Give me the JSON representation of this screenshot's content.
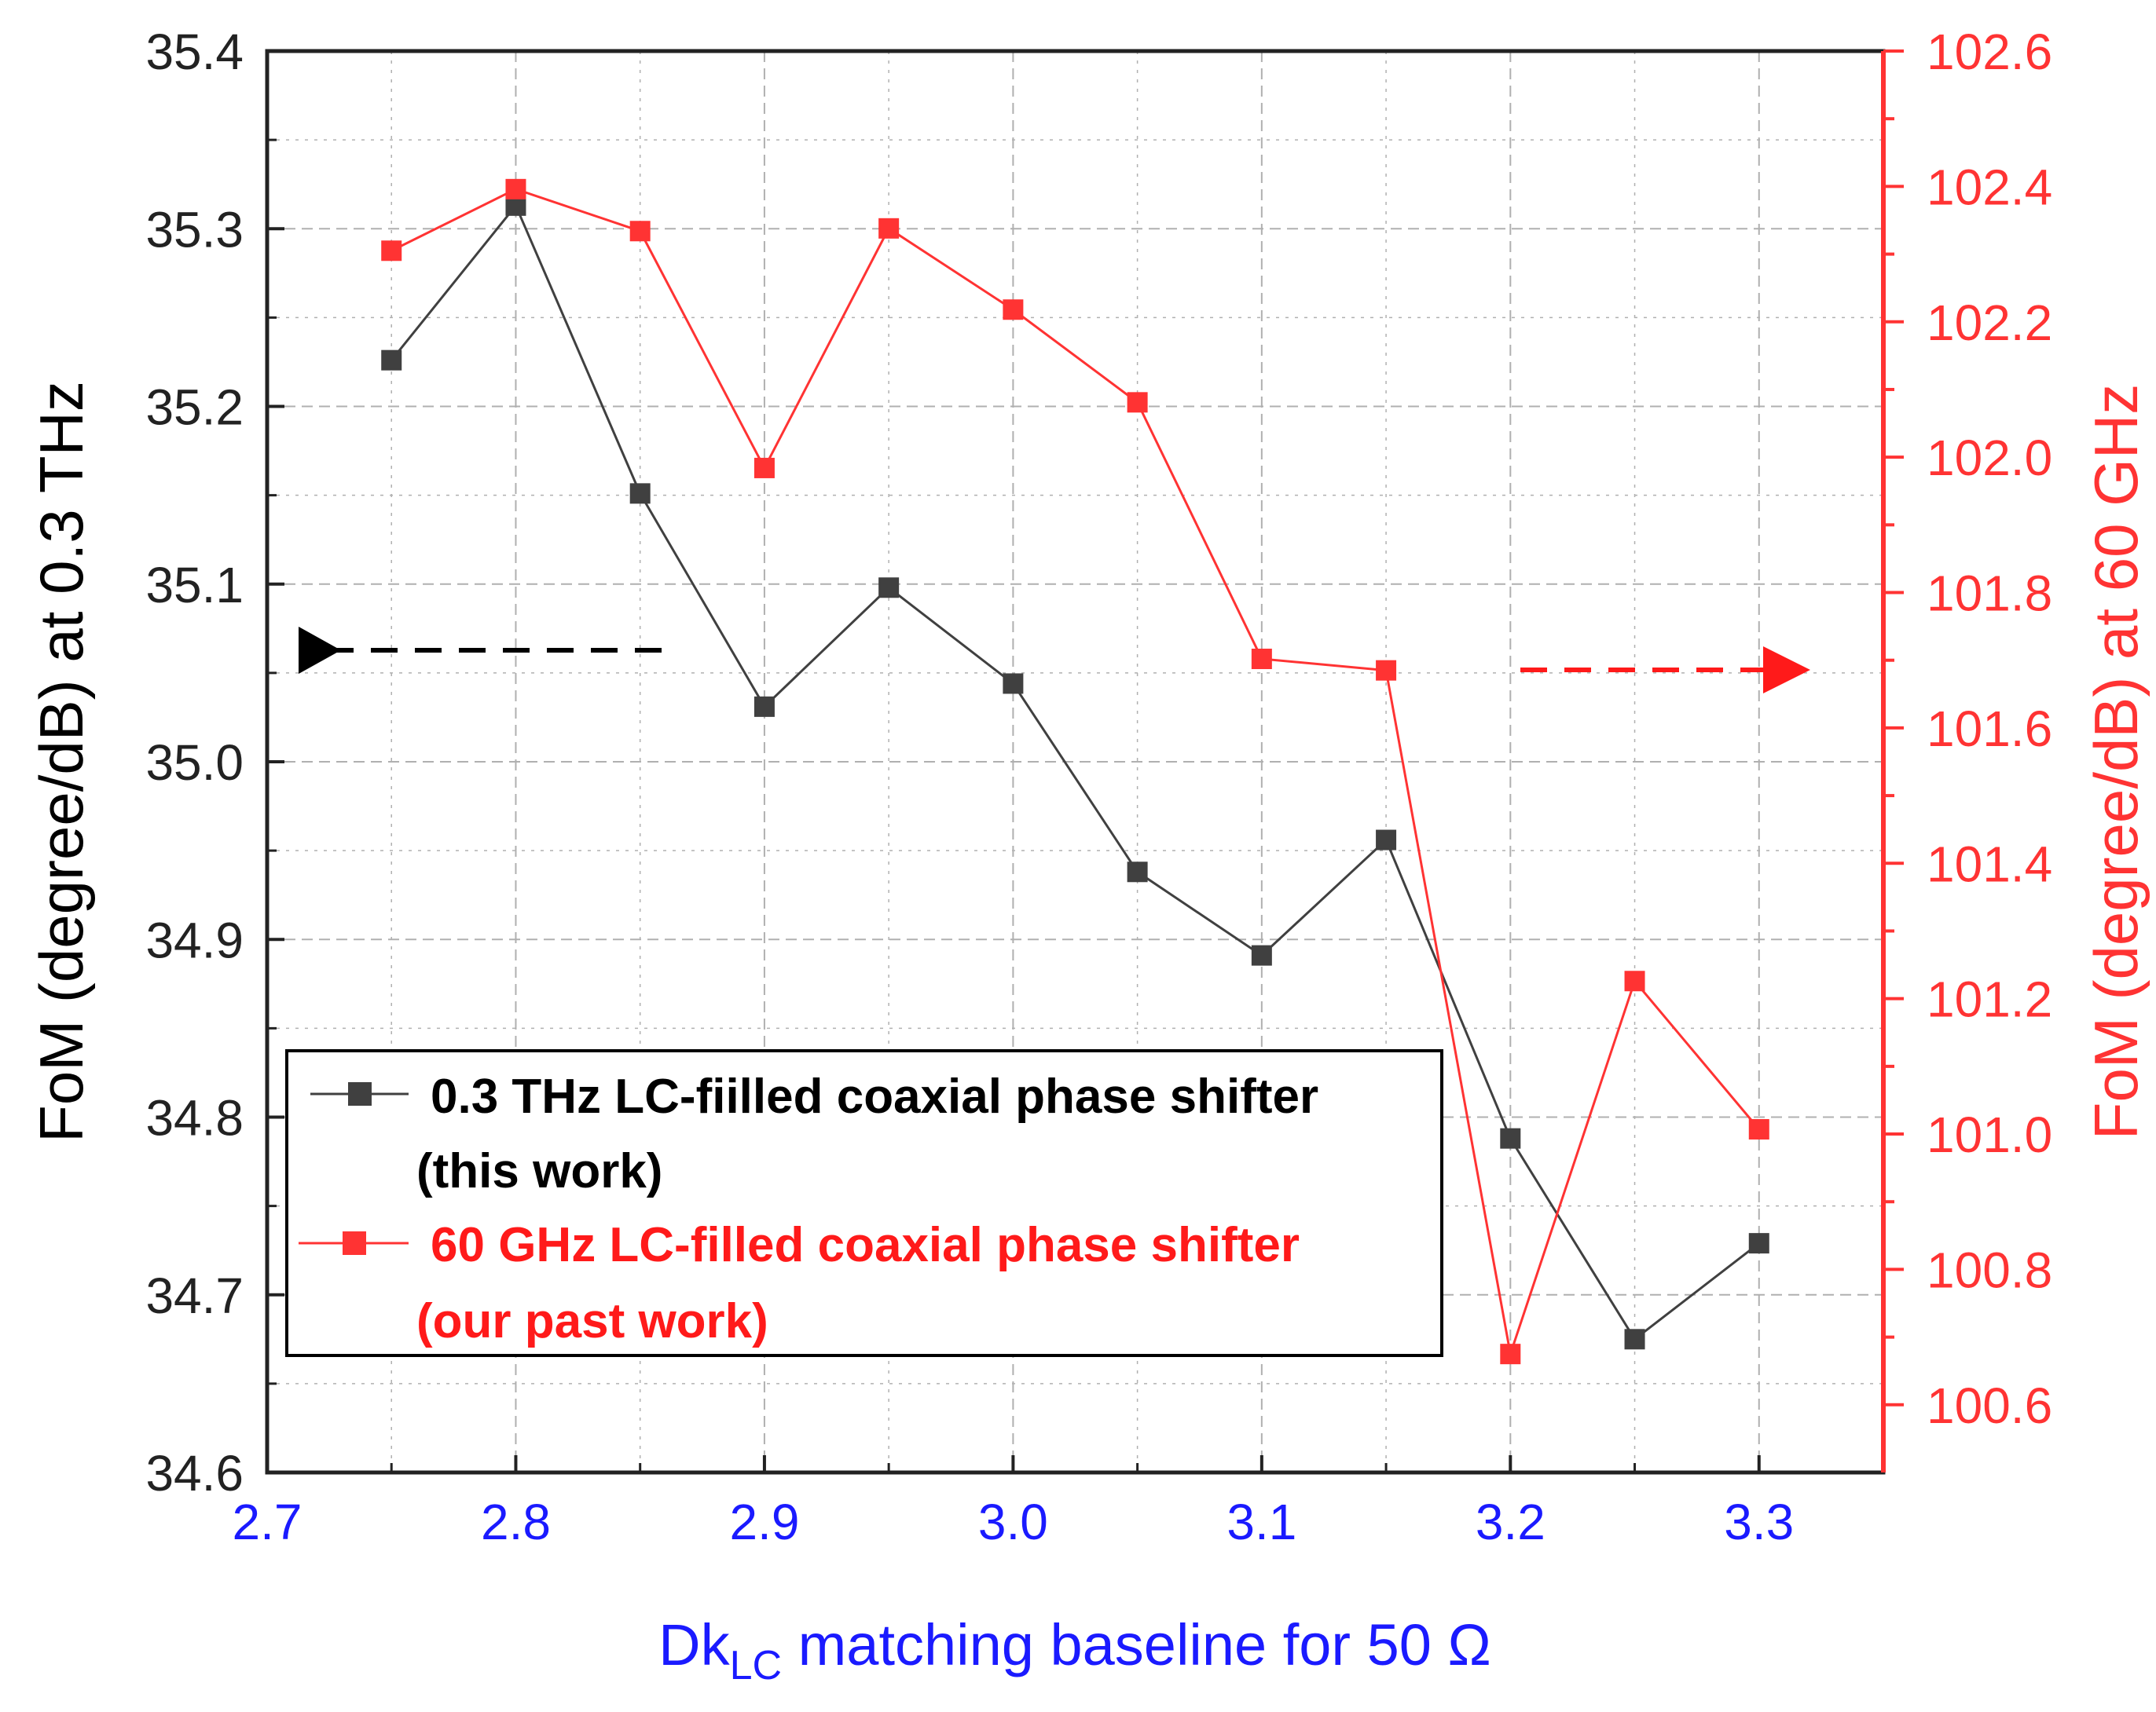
{
  "colors": {
    "black_series": "#404040",
    "red_series": "#ff3333",
    "left_axis": "#222222",
    "right_axis": "#ff3333",
    "x_ticks": "#1a1aff",
    "grid": "#b0b0b0"
  },
  "chart_data": {
    "type": "line",
    "title": "",
    "x_axis": {
      "ticks": [
        "2.7",
        "2.8",
        "2.9",
        "3.0",
        "3.1",
        "3.2",
        "3.3"
      ],
      "range": [
        2.7,
        3.35
      ],
      "grid": true
    },
    "xlabel": {
      "main": "Dk",
      "sub": "LC",
      "rest": " matching baseline for 50 Ω"
    },
    "y_left": {
      "label": "FoM (degree/dB) at 0.3 THz",
      "ticks": [
        "34.6",
        "34.7",
        "34.8",
        "34.9",
        "35.0",
        "35.1",
        "35.2",
        "35.3",
        "35.4"
      ],
      "range": [
        34.6,
        35.4
      ]
    },
    "y_right": {
      "label": "FoM (degree/dB) at 60 GHz",
      "ticks": [
        "100.6",
        "100.8",
        "101.0",
        "101.2",
        "101.4",
        "101.6",
        "101.8",
        "102.0",
        "102.2",
        "102.4",
        "102.6"
      ],
      "range": [
        100.5,
        102.6
      ]
    },
    "series": [
      {
        "name": "0.3 THz LC-fiilled coaxial phase shifter (this work)",
        "axis": "left",
        "color": "#404040",
        "x": [
          2.75,
          2.8,
          2.85,
          2.9,
          2.95,
          3.0,
          3.05,
          3.1,
          3.15,
          3.2,
          3.25,
          3.3
        ],
        "y": [
          35.226,
          35.313,
          35.151,
          35.031,
          35.098,
          35.044,
          34.938,
          34.891,
          34.956,
          34.788,
          34.675,
          34.729
        ]
      },
      {
        "name": "60 GHz LC-filled coaxial phase shifter (our past work)",
        "axis": "right",
        "color": "#ff3333",
        "x": [
          2.75,
          2.8,
          2.85,
          2.9,
          2.95,
          3.0,
          3.05,
          3.1,
          3.15,
          3.2,
          3.25,
          3.3
        ],
        "y": [
          102.305,
          102.396,
          102.334,
          101.984,
          102.338,
          102.218,
          102.081,
          101.702,
          101.685,
          100.675,
          101.226,
          101.007
        ]
      }
    ],
    "legend": {
      "position": "bottom-left",
      "entries": [
        {
          "line1": "0.3 THz LC-fiilled coaxial phase shifter",
          "line2": "(this work)",
          "color": "#000000"
        },
        {
          "line1": "60 GHz LC-filled coaxial phase shifter",
          "line2": "(our past work)",
          "color": "#ff1a1a"
        }
      ]
    },
    "annotations": [
      {
        "type": "dashed-arrow",
        "direction": "left",
        "color": "#000000",
        "meaning": "points to left axis"
      },
      {
        "type": "dashed-arrow",
        "direction": "right",
        "color": "#ff1a1a",
        "meaning": "points to right axis"
      }
    ]
  }
}
